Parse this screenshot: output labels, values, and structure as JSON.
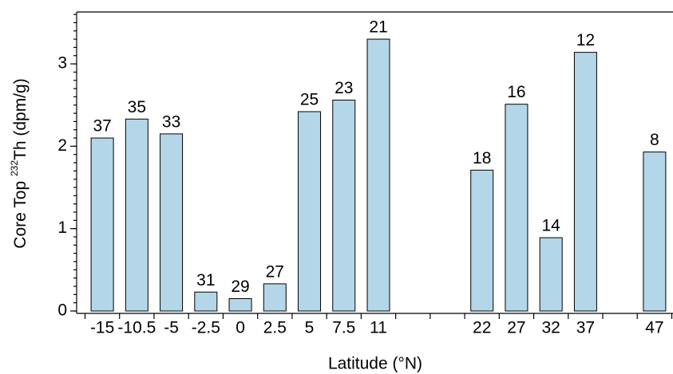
{
  "chart_data": {
    "type": "bar",
    "xlabel": "Latitude (°N)",
    "ylabel": [
      "Core Top ",
      "232",
      "Th (dpm/g)"
    ],
    "categories": [
      "-15",
      "-10.5",
      "-5",
      "-2.5",
      "0",
      "2.5",
      "5",
      "7.5",
      "11",
      null,
      null,
      "22",
      "27",
      "32",
      "37",
      null,
      "47"
    ],
    "values": [
      2.1,
      2.33,
      2.15,
      0.23,
      0.15,
      0.33,
      2.42,
      2.56,
      3.3,
      null,
      null,
      1.71,
      2.51,
      0.89,
      3.14,
      null,
      1.93
    ],
    "annotations": [
      "37",
      "35",
      "33",
      "31",
      "29",
      "27",
      "25",
      "23",
      "21",
      null,
      null,
      "18",
      "16",
      "14",
      "12",
      null,
      "8"
    ],
    "color": "#b3d7e8",
    "ylim": [
      0,
      3.63
    ],
    "yticks": [
      0,
      1,
      2,
      3
    ],
    "y_minor_step": 0.1
  }
}
